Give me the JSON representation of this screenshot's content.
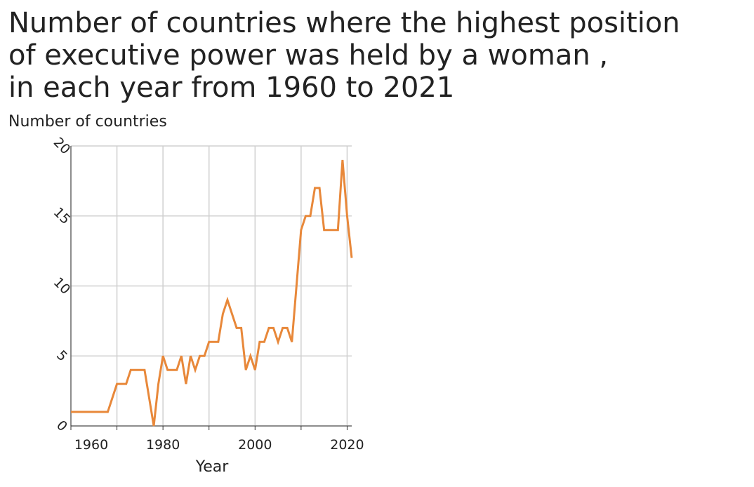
{
  "chart_data": {
    "type": "line",
    "title": "Number of countries where the highest position of executive power was held by a woman , in each year from 1960 to 2021",
    "title_lines": [
      "Number of countries where the highest position",
      "of executive power was held by a woman ,",
      "in each year from 1960 to 2021"
    ],
    "y_label": "Number of countries",
    "x_label": "Year",
    "x": [
      1960,
      1961,
      1962,
      1963,
      1964,
      1965,
      1966,
      1967,
      1968,
      1969,
      1970,
      1971,
      1972,
      1973,
      1974,
      1975,
      1976,
      1977,
      1978,
      1979,
      1980,
      1981,
      1982,
      1983,
      1984,
      1985,
      1986,
      1987,
      1988,
      1989,
      1990,
      1991,
      1992,
      1993,
      1994,
      1995,
      1996,
      1997,
      1998,
      1999,
      2000,
      2001,
      2002,
      2003,
      2004,
      2005,
      2006,
      2007,
      2008,
      2009,
      2010,
      2011,
      2012,
      2013,
      2014,
      2015,
      2016,
      2017,
      2018,
      2019,
      2020,
      2021
    ],
    "series": [
      {
        "color": "#e8883a",
        "values": [
          1,
          1,
          1,
          1,
          1,
          1,
          1,
          1,
          1,
          2,
          3,
          3,
          3,
          4,
          4,
          4,
          4,
          2,
          0,
          3,
          5,
          4,
          4,
          4,
          5,
          3,
          5,
          4,
          5,
          5,
          6,
          6,
          6,
          8,
          9,
          8,
          7,
          7,
          4,
          5,
          4,
          6,
          6,
          7,
          7,
          6,
          7,
          7,
          6,
          10,
          14,
          15,
          15,
          17,
          17,
          14,
          14,
          14,
          14,
          19,
          15,
          12
        ]
      }
    ],
    "xlim": [
      1960,
      2021
    ],
    "xticks": [
      1960,
      1980,
      2000,
      2020
    ],
    "xminor_ticks": [
      1970,
      1990,
      2010
    ],
    "ylim": [
      0,
      20
    ],
    "yticks": [
      0,
      5,
      10,
      15,
      20
    ],
    "grid": true
  }
}
